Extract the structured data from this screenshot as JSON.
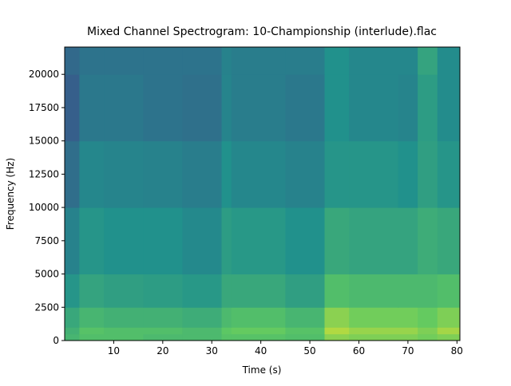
{
  "chart_data": {
    "type": "spectrogram",
    "title": "Mixed Channel Spectrogram: 10-Championship (interlude).flac",
    "x_label": "Time (s)",
    "y_label": "Frequency (Hz)",
    "colormap": "viridis",
    "xlim": [
      0,
      80.6
    ],
    "ylim": [
      0,
      22050
    ],
    "xticks": [
      10,
      20,
      30,
      40,
      50,
      60,
      70,
      80
    ],
    "yticks": [
      0,
      2500,
      5000,
      7500,
      10000,
      12500,
      15000,
      17500,
      20000
    ],
    "time_bins": [
      0,
      3,
      8,
      16,
      24,
      32,
      34,
      45,
      53,
      58,
      68,
      72,
      76,
      80.6
    ],
    "freq_bins": [
      0,
      500,
      1000,
      2500,
      5000,
      10000,
      15000,
      20000,
      22050
    ],
    "intensity": [
      [
        0.66,
        0.7,
        0.7,
        0.68,
        0.68,
        0.72,
        0.72,
        0.7,
        0.82,
        0.8,
        0.8,
        0.78,
        0.8
      ],
      [
        0.64,
        0.72,
        0.7,
        0.7,
        0.68,
        0.74,
        0.76,
        0.72,
        0.88,
        0.84,
        0.84,
        0.8,
        0.86
      ],
      [
        0.6,
        0.66,
        0.64,
        0.64,
        0.62,
        0.68,
        0.7,
        0.66,
        0.82,
        0.78,
        0.78,
        0.76,
        0.8
      ],
      [
        0.52,
        0.58,
        0.56,
        0.55,
        0.53,
        0.6,
        0.6,
        0.56,
        0.7,
        0.68,
        0.68,
        0.68,
        0.7
      ],
      [
        0.44,
        0.52,
        0.5,
        0.5,
        0.47,
        0.55,
        0.53,
        0.5,
        0.6,
        0.58,
        0.58,
        0.62,
        0.6
      ],
      [
        0.36,
        0.46,
        0.45,
        0.44,
        0.42,
        0.5,
        0.46,
        0.44,
        0.52,
        0.52,
        0.5,
        0.56,
        0.52
      ],
      [
        0.3,
        0.4,
        0.4,
        0.38,
        0.37,
        0.45,
        0.42,
        0.4,
        0.5,
        0.46,
        0.45,
        0.55,
        0.48
      ],
      [
        0.34,
        0.38,
        0.38,
        0.38,
        0.38,
        0.44,
        0.42,
        0.42,
        0.5,
        0.46,
        0.46,
        0.58,
        0.48
      ]
    ]
  }
}
